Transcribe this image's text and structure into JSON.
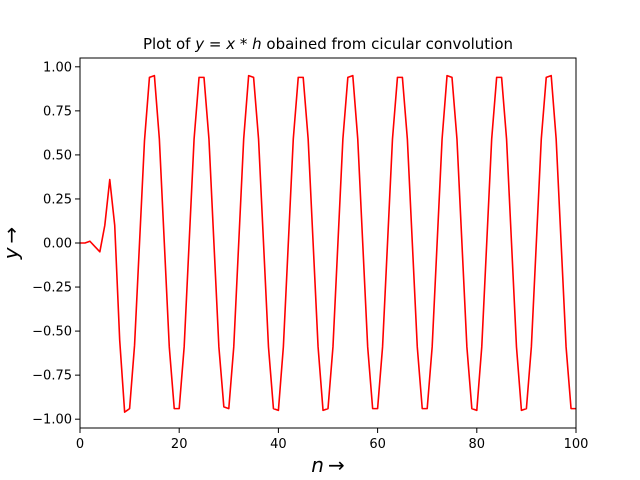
{
  "chart_data": {
    "type": "line",
    "title_prefix": "Plot of ",
    "title_math": "y = x * h",
    "title_suffix": " obained from cicular convolution",
    "xlabel": "n",
    "ylabel": "y",
    "xlabel_arrow": "→",
    "ylabel_arrow": "→",
    "xlim": [
      0,
      100
    ],
    "ylim": [
      -1.05,
      1.05
    ],
    "x_ticks": [
      0,
      20,
      40,
      60,
      80,
      100
    ],
    "x_tick_labels": [
      "0",
      "20",
      "40",
      "60",
      "80",
      "100"
    ],
    "y_ticks": [
      -1.0,
      -0.75,
      -0.5,
      -0.25,
      0.0,
      0.25,
      0.5,
      0.75,
      1.0
    ],
    "y_tick_labels": [
      "−1.00",
      "−0.75",
      "−0.50",
      "−0.25",
      "0.00",
      "0.25",
      "0.50",
      "0.75",
      "1.00"
    ],
    "grid": false,
    "series": [
      {
        "color": "#ff0000",
        "x": [
          0,
          1,
          2,
          3,
          4,
          5,
          6,
          7,
          8,
          9,
          10,
          11,
          12,
          13,
          14,
          15,
          16,
          17,
          18,
          19,
          20,
          21,
          22,
          23,
          24,
          25,
          26,
          27,
          28,
          29,
          30,
          31,
          32,
          33,
          34,
          35,
          36,
          37,
          38,
          39,
          40,
          41,
          42,
          43,
          44,
          45,
          46,
          47,
          48,
          49,
          50,
          51,
          52,
          53,
          54,
          55,
          56,
          57,
          58,
          59,
          60,
          61,
          62,
          63,
          64,
          65,
          66,
          67,
          68,
          69,
          70,
          71,
          72,
          73,
          74,
          75,
          76,
          77,
          78,
          79,
          80,
          81,
          82,
          83,
          84,
          85,
          86,
          87,
          88,
          89,
          90,
          91,
          92,
          93,
          94,
          95,
          96,
          97,
          98,
          99,
          100
        ],
        "y": [
          0.0,
          0.0,
          0.01,
          -0.02,
          -0.05,
          0.1,
          0.36,
          0.1,
          -0.55,
          -0.96,
          -0.94,
          -0.58,
          0.0,
          0.58,
          0.94,
          0.95,
          0.59,
          0.0,
          -0.59,
          -0.94,
          -0.94,
          -0.59,
          0.0,
          0.59,
          0.94,
          0.94,
          0.59,
          0.0,
          -0.59,
          -0.93,
          -0.94,
          -0.59,
          0.0,
          0.59,
          0.95,
          0.94,
          0.59,
          0.0,
          -0.59,
          -0.94,
          -0.95,
          -0.59,
          0.0,
          0.59,
          0.94,
          0.94,
          0.59,
          0.0,
          -0.59,
          -0.95,
          -0.94,
          -0.59,
          0.0,
          0.59,
          0.94,
          0.95,
          0.59,
          0.0,
          -0.59,
          -0.94,
          -0.94,
          -0.59,
          0.0,
          0.59,
          0.94,
          0.94,
          0.59,
          0.0,
          -0.59,
          -0.94,
          -0.94,
          -0.59,
          0.0,
          0.59,
          0.95,
          0.94,
          0.59,
          0.0,
          -0.59,
          -0.94,
          -0.95,
          -0.59,
          0.0,
          0.59,
          0.94,
          0.94,
          0.59,
          0.0,
          -0.59,
          -0.95,
          -0.94,
          -0.59,
          0.0,
          0.59,
          0.94,
          0.95,
          0.59,
          0.0,
          -0.59,
          -0.94,
          -0.94
        ]
      }
    ]
  }
}
